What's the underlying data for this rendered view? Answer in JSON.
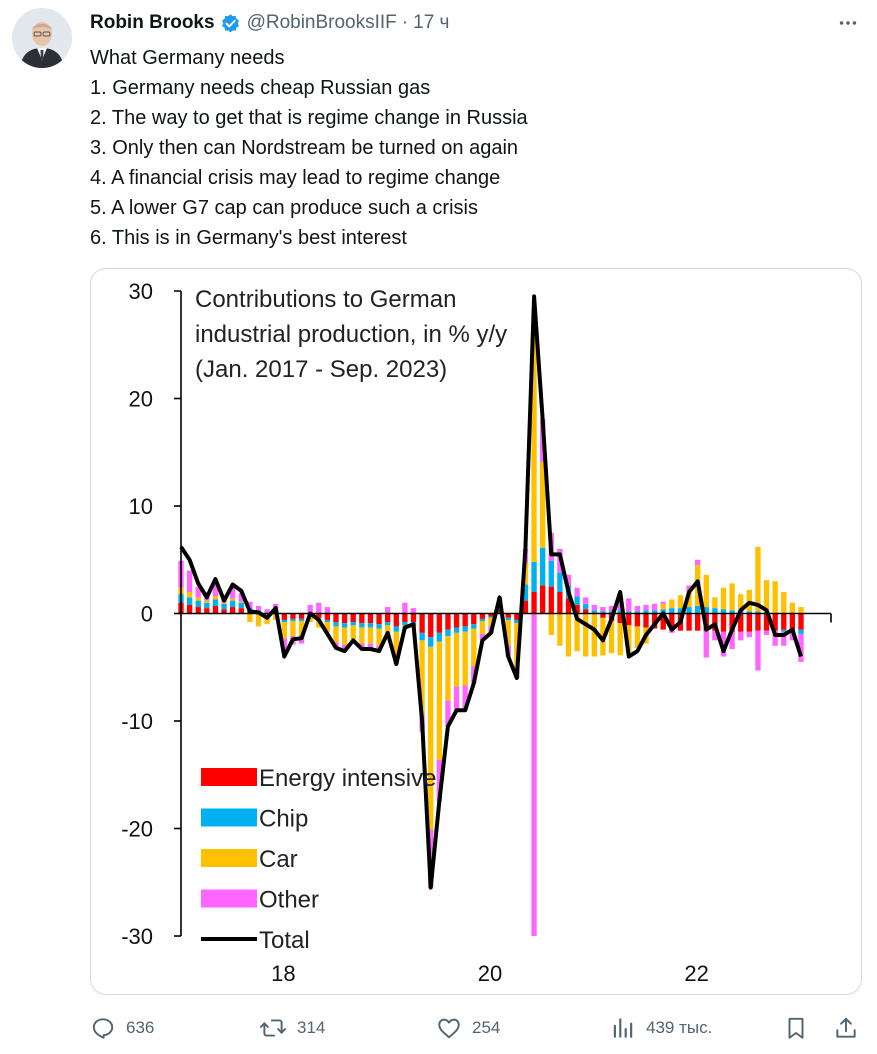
{
  "tweet": {
    "author_name": "Robin Brooks",
    "handle": "@RobinBrooksIIF",
    "separator": "·",
    "time": "17 ч",
    "lines": [
      "What Germany needs",
      "1. Germany needs cheap Russian gas",
      "2. The way to get that is regime change in Russia",
      "3. Only then can Nordstream be turned on again",
      "4. A financial crisis may lead to regime change",
      "5. A lower G7 cap can produce such a crisis",
      "6. This is in Germany's best interest"
    ]
  },
  "actions": {
    "replies": "636",
    "retweets": "314",
    "likes": "254",
    "views": "439 тыс."
  },
  "colors": {
    "energy": "#ff0000",
    "chip": "#00b0f0",
    "car": "#ffc000",
    "other": "#ff66ff",
    "total": "#000000",
    "verified": "#1d9bf0",
    "muted": "#536471"
  },
  "chart_data": {
    "type": "bar",
    "title_lines": [
      "Contributions to German",
      "industrial production, in % y/y",
      "(Jan. 2017 - Sep. 2023)"
    ],
    "y_ticks": [
      "30",
      "20",
      "10",
      "0",
      "-10",
      "-20",
      "-30"
    ],
    "y_tick_values": [
      30,
      20,
      10,
      0,
      -10,
      -20,
      -30
    ],
    "x_ticks": [
      "18",
      "20",
      "22"
    ],
    "ylim": [
      -30,
      30
    ],
    "legend": [
      "Energy intensive",
      "Chip",
      "Car",
      "Other",
      "Total"
    ],
    "series_names": [
      "Energy intensive",
      "Chip",
      "Car",
      "Other"
    ],
    "total": [
      6.2,
      5,
      2.8,
      1.5,
      3.2,
      1.2,
      2.7,
      2.1,
      0.2,
      0.1,
      -0.4,
      0.5,
      -4.0,
      -2.4,
      -2.3,
      0.0,
      -0.6,
      -1.9,
      -3.2,
      -3.5,
      -2.5,
      -3.3,
      -3.3,
      -3.5,
      -1.8,
      -4.7,
      -1.3,
      -1.0,
      -10.0,
      -25.5,
      -17.5,
      -10.5,
      -9.0,
      -9.0,
      -6.5,
      -2.5,
      -1.8,
      1.5,
      -4.0,
      -6.0,
      6.0,
      29.5,
      18.0,
      5.5,
      5.5,
      2.0,
      -0.5,
      -1.0,
      -1.5,
      -2.5,
      -0.5,
      2.0,
      -4.0,
      -3.5,
      -2.0,
      -1.0,
      0.0,
      -1.5,
      -0.8,
      2.0,
      3.0,
      -1.5,
      -1.0,
      -3.5,
      -1.5,
      0.3,
      1.0,
      0.8,
      0.3,
      -2.0,
      -2.0,
      -1.5,
      -4.0
    ],
    "energy": [
      1.0,
      0.8,
      0.6,
      0.5,
      0.7,
      0.4,
      0.6,
      0.5,
      0.2,
      0.1,
      0.0,
      0.1,
      -0.6,
      -0.5,
      -0.5,
      -0.2,
      -0.4,
      -0.6,
      -0.8,
      -0.9,
      -0.8,
      -0.9,
      -0.9,
      -1.0,
      -0.8,
      -1.2,
      -0.8,
      -0.8,
      -1.8,
      -2.2,
      -1.8,
      -1.5,
      -1.3,
      -1.2,
      -1.0,
      -0.5,
      -0.3,
      0.3,
      -0.4,
      -0.6,
      1.2,
      2.0,
      2.6,
      2.5,
      2.0,
      1.4,
      0.8,
      0.4,
      0.0,
      -0.4,
      -0.7,
      -0.9,
      -1.1,
      -1.2,
      -1.3,
      -1.4,
      -1.5,
      -1.5,
      -1.6,
      -1.6,
      -1.6,
      -1.6,
      -1.6,
      -1.7,
      -1.7,
      -1.7,
      -1.7,
      -1.6,
      -1.6,
      -1.6,
      -1.5,
      -1.5,
      -1.5
    ],
    "chip": [
      0.8,
      0.7,
      0.6,
      0.5,
      0.6,
      0.5,
      0.6,
      0.5,
      0.3,
      0.2,
      0.1,
      0.2,
      -0.2,
      -0.2,
      -0.2,
      0.0,
      -0.1,
      -0.2,
      -0.4,
      -0.4,
      -0.3,
      -0.4,
      -0.4,
      -0.4,
      -0.3,
      -0.5,
      -0.3,
      -0.3,
      -0.7,
      -0.9,
      -0.8,
      -0.6,
      -0.5,
      -0.5,
      -0.4,
      -0.2,
      -0.1,
      0.2,
      -0.2,
      -0.3,
      1.5,
      2.8,
      3.5,
      2.4,
      1.8,
      1.2,
      0.8,
      0.5,
      0.3,
      0.2,
      0.2,
      0.3,
      0.2,
      0.2,
      0.3,
      0.3,
      0.4,
      0.5,
      0.5,
      0.6,
      0.7,
      0.6,
      0.5,
      0.4,
      0.3,
      0.3,
      0.2,
      0.2,
      0.1,
      0.0,
      -0.2,
      -0.3,
      -0.4
    ],
    "car": [
      0.6,
      0.5,
      0.3,
      0.2,
      0.3,
      0.1,
      0.2,
      0.1,
      -0.8,
      -1.2,
      -1.0,
      -0.6,
      -1.5,
      -1.4,
      -1.3,
      -0.6,
      -0.8,
      -0.9,
      -1.5,
      -1.6,
      -1.3,
      -1.5,
      -1.5,
      -1.6,
      -0.8,
      -2.2,
      -0.3,
      -0.2,
      -7.0,
      -17.0,
      -11.0,
      -6.0,
      -5.0,
      -5.0,
      -3.5,
      -1.2,
      -0.8,
      0.6,
      -2.4,
      -4.0,
      2.0,
      22.0,
      8.0,
      -2.0,
      -3.0,
      -4.0,
      -3.5,
      -4.0,
      -4.0,
      -3.5,
      -3.0,
      -3.0,
      -2.5,
      -2.0,
      -1.5,
      0.0,
      0.5,
      0.8,
      1.2,
      1.5,
      3.8,
      3.0,
      1.0,
      2.0,
      2.5,
      1.5,
      2.0,
      6.0,
      3.0,
      3.0,
      2.0,
      1.0,
      0.6
    ],
    "other": [
      2.5,
      2.0,
      1.0,
      0.8,
      1.2,
      0.5,
      1.0,
      0.8,
      0.6,
      0.4,
      0.3,
      0.6,
      -1.2,
      -0.8,
      -0.8,
      0.8,
      1.0,
      0.6,
      -0.5,
      -0.6,
      0.0,
      -0.5,
      -0.5,
      -0.5,
      0.6,
      -0.8,
      1.0,
      0.5,
      -1.5,
      -5.4,
      -3.9,
      -2.4,
      -2.2,
      -2.3,
      -1.6,
      -0.6,
      -0.6,
      0.4,
      -1.0,
      -1.1,
      1.3,
      -30.0,
      4.0,
      2.6,
      2.2,
      1.0,
      0.8,
      0.6,
      0.5,
      0.4,
      0.5,
      0.8,
      1.2,
      0.5,
      0.5,
      0.6,
      0.2,
      -0.3,
      0.0,
      0.5,
      0.5,
      -2.5,
      -0.9,
      -2.3,
      -1.6,
      -0.8,
      -0.5,
      -3.7,
      -0.4,
      -1.4,
      -1.3,
      -0.7,
      -2.6
    ]
  }
}
